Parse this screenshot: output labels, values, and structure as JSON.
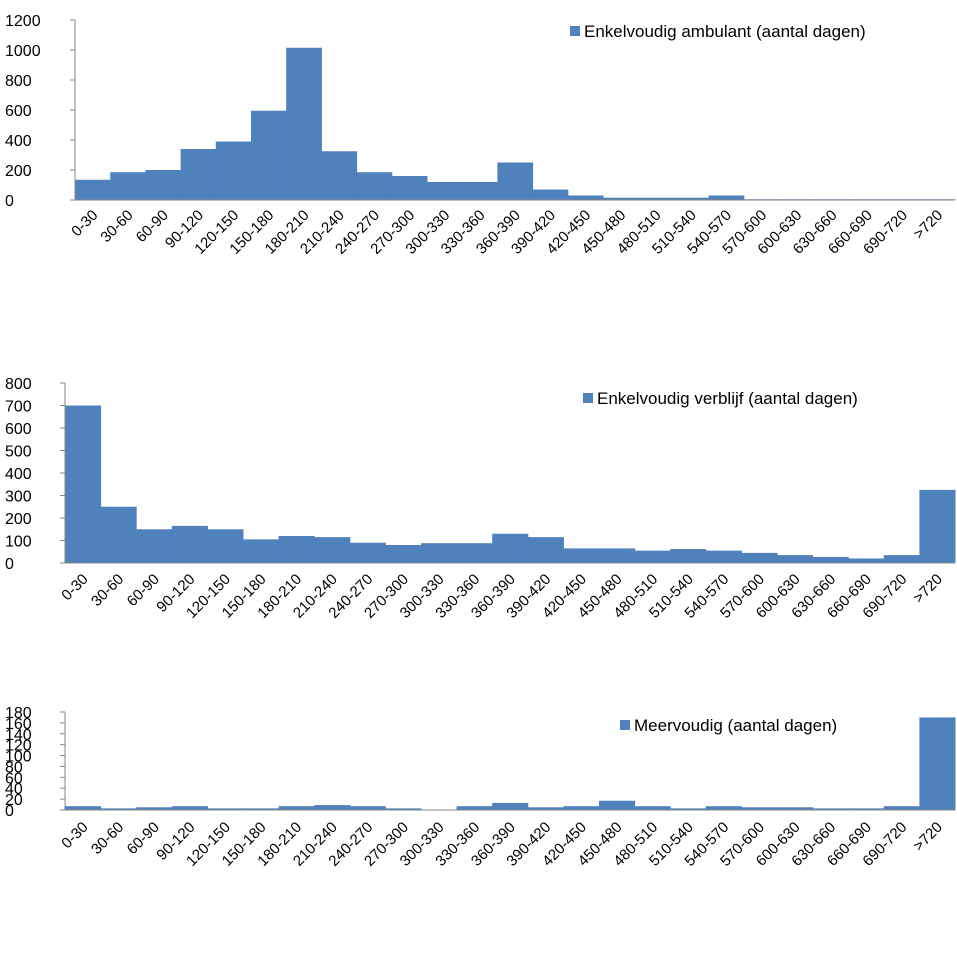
{
  "chart_data": [
    {
      "type": "bar",
      "categories": [
        "0-30",
        "30-60",
        "60-90",
        "90-120",
        "120-150",
        "150-180",
        "180-210",
        "210-240",
        "240-270",
        "270-300",
        "300-330",
        "330-360",
        "360-390",
        "390-420",
        "420-450",
        "450-480",
        "480-510",
        "510-540",
        "540-570",
        "570-600",
        "600-630",
        "630-660",
        "660-690",
        "690-720",
        ">720"
      ],
      "series": [
        {
          "name": "Enkelvoudig ambulant  (aantal dagen)",
          "values": [
            135,
            185,
            200,
            340,
            390,
            595,
            1015,
            325,
            185,
            160,
            120,
            120,
            250,
            70,
            30,
            15,
            15,
            15,
            30,
            5,
            5,
            5,
            5,
            5,
            5
          ]
        }
      ],
      "ylim": [
        0,
        1200
      ],
      "yticks": [
        0,
        200,
        400,
        600,
        800,
        1000,
        1200
      ],
      "legend": "top-right",
      "grid": false,
      "color": "#4F81BD"
    },
    {
      "type": "bar",
      "categories": [
        "0-30",
        "30-60",
        "60-90",
        "90-120",
        "120-150",
        "150-180",
        "180-210",
        "210-240",
        "240-270",
        "270-300",
        "300-330",
        "330-360",
        "360-390",
        "390-420",
        "420-450",
        "450-480",
        "480-510",
        "510-540",
        "540-570",
        "570-600",
        "600-630",
        "630-660",
        "660-690",
        "690-720",
        ">720"
      ],
      "series": [
        {
          "name": "Enkelvoudig verblijf (aantal dagen)",
          "values": [
            700,
            250,
            150,
            165,
            150,
            105,
            120,
            115,
            90,
            80,
            88,
            88,
            130,
            115,
            65,
            65,
            55,
            62,
            55,
            45,
            35,
            27,
            20,
            35,
            325
          ]
        }
      ],
      "ylim": [
        0,
        800
      ],
      "yticks": [
        0,
        100,
        200,
        300,
        400,
        500,
        600,
        700,
        800
      ],
      "legend": "top-right",
      "grid": false,
      "color": "#4F81BD"
    },
    {
      "type": "bar",
      "categories": [
        "0-30",
        "30-60",
        "60-90",
        "90-120",
        "120-150",
        "150-180",
        "180-210",
        "210-240",
        "240-270",
        "270-300",
        "300-330",
        "330-360",
        "360-390",
        "390-420",
        "420-450",
        "450-480",
        "480-510",
        "510-540",
        "540-570",
        "570-600",
        "600-630",
        "630-660",
        "660-690",
        "690-720",
        ">720"
      ],
      "series": [
        {
          "name": "Meervoudig (aantal dagen)",
          "values": [
            7,
            3,
            5,
            7,
            3,
            3,
            7,
            9,
            7,
            3,
            1,
            7,
            13,
            5,
            7,
            17,
            7,
            3,
            7,
            5,
            5,
            3,
            3,
            7,
            170
          ]
        }
      ],
      "ylim": [
        0,
        180
      ],
      "yticks": [
        0,
        20,
        40,
        60,
        80,
        100,
        120,
        140,
        160,
        180
      ],
      "legend": "top-right",
      "grid": false,
      "color": "#4F81BD"
    }
  ]
}
